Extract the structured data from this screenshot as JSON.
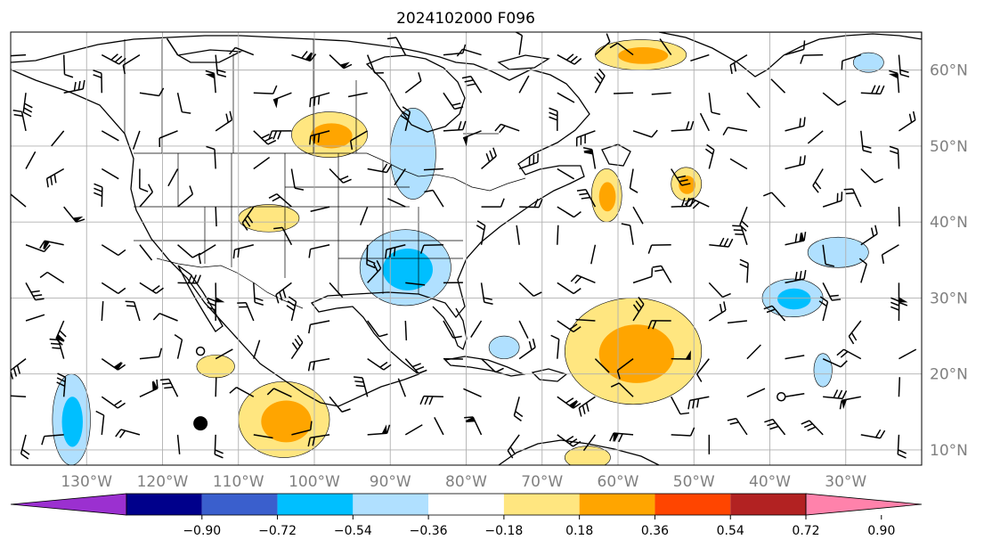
{
  "title": "2024102000 F096",
  "map": {
    "projection": "PlateCarree",
    "lon_range": [
      -140,
      -20
    ],
    "lat_range": [
      8,
      65
    ],
    "gridlines": true,
    "lon_ticks": [
      {
        "value": -130,
        "label": "130°W"
      },
      {
        "value": -120,
        "label": "120°W"
      },
      {
        "value": -110,
        "label": "110°W"
      },
      {
        "value": -100,
        "label": "100°W"
      },
      {
        "value": -90,
        "label": "90°W"
      },
      {
        "value": -80,
        "label": "80°W"
      },
      {
        "value": -70,
        "label": "70°W"
      },
      {
        "value": -60,
        "label": "60°W"
      },
      {
        "value": -50,
        "label": "50°W"
      },
      {
        "value": -40,
        "label": "40°W"
      },
      {
        "value": -30,
        "label": "30°W"
      }
    ],
    "lat_ticks": [
      {
        "value": 60,
        "label": "60°N"
      },
      {
        "value": 50,
        "label": "50°N"
      },
      {
        "value": 40,
        "label": "40°N"
      },
      {
        "value": 30,
        "label": "30°N"
      },
      {
        "value": 20,
        "label": "20°N"
      },
      {
        "value": 10,
        "label": "10°N"
      }
    ]
  },
  "colorbar": {
    "extend": "both",
    "bins": [
      {
        "color": "#9b30d0"
      },
      {
        "color": "#00008b"
      },
      {
        "color": "#3a5fcd"
      },
      {
        "color": "#00bfff"
      },
      {
        "color": "#b0e0ff"
      },
      {
        "color": "#ffffff"
      },
      {
        "color": "#ffe680"
      },
      {
        "color": "#ffa500"
      },
      {
        "color": "#ff4500"
      },
      {
        "color": "#b22222"
      },
      {
        "color": "#ff82ab"
      }
    ],
    "tick_labels": [
      "−0.90",
      "−0.72",
      "−0.54",
      "−0.36",
      "−0.18",
      "0.18",
      "0.36",
      "0.54",
      "0.72",
      "0.90"
    ]
  },
  "anomaly_regions": [
    {
      "name": "pos-hudson-bay",
      "sign": "positive",
      "level": 2,
      "center": [
        -98,
        51.5
      ],
      "radius": [
        5,
        3
      ]
    },
    {
      "name": "pos-great-plains",
      "sign": "positive",
      "level": 1,
      "center": [
        -106,
        40.5
      ],
      "radius": [
        4,
        1.8
      ]
    },
    {
      "name": "pos-baja",
      "sign": "positive",
      "level": 1,
      "center": [
        -113,
        21
      ],
      "radius": [
        2.5,
        1.5
      ]
    },
    {
      "name": "pos-mexico-west",
      "sign": "positive",
      "level": 2,
      "center": [
        -104,
        14
      ],
      "radius": [
        6,
        5
      ]
    },
    {
      "name": "pos-labrador-sea",
      "sign": "positive",
      "level": 2,
      "center": [
        -57,
        62
      ],
      "radius": [
        6,
        2
      ]
    },
    {
      "name": "pos-nova-scotia",
      "sign": "positive",
      "level": 2,
      "center": [
        -61.5,
        43.5
      ],
      "radius": [
        2,
        3.5
      ]
    },
    {
      "name": "pos-mid-atlantic-n",
      "sign": "positive",
      "level": 2,
      "center": [
        -51,
        45
      ],
      "radius": [
        2,
        2.2
      ]
    },
    {
      "name": "pos-atlantic-central",
      "sign": "positive",
      "level": 2,
      "center": [
        -58,
        23
      ],
      "radius": [
        9,
        7
      ]
    },
    {
      "name": "pos-caribbean-s",
      "sign": "positive",
      "level": 1,
      "center": [
        -64,
        9
      ],
      "radius": [
        3,
        1.5
      ]
    },
    {
      "name": "neg-great-lakes",
      "sign": "negative",
      "level": 1,
      "center": [
        -87,
        49
      ],
      "radius": [
        3,
        6
      ]
    },
    {
      "name": "neg-southeast",
      "sign": "negative",
      "level": 2,
      "center": [
        -88,
        34
      ],
      "radius": [
        6,
        5
      ]
    },
    {
      "name": "neg-bahamas",
      "sign": "negative",
      "level": 1,
      "center": [
        -75,
        23.5
      ],
      "radius": [
        2,
        1.5
      ]
    },
    {
      "name": "neg-atlantic-east",
      "sign": "negative",
      "level": 2,
      "center": [
        -37,
        30
      ],
      "radius": [
        4,
        2.5
      ]
    },
    {
      "name": "neg-atlantic-40n",
      "sign": "negative",
      "level": 1,
      "center": [
        -31,
        36
      ],
      "radius": [
        4,
        2
      ]
    },
    {
      "name": "neg-pacific",
      "sign": "negative",
      "level": 2,
      "center": [
        -132,
        14
      ],
      "radius": [
        2.5,
        6
      ]
    },
    {
      "name": "neg-azores-w",
      "sign": "negative",
      "level": 1,
      "center": [
        -33,
        20.5
      ],
      "radius": [
        1.2,
        2.2
      ]
    },
    {
      "name": "neg-greenland-se",
      "sign": "negative",
      "level": 1,
      "center": [
        -27,
        61
      ],
      "radius": [
        2,
        1.3
      ]
    }
  ],
  "markers": [
    {
      "name": "hurricane-marker",
      "lon": -115,
      "lat": 13.5,
      "type": "filled-circle"
    },
    {
      "name": "open-circle-west",
      "lon": -115,
      "lat": 23,
      "type": "open-circle"
    },
    {
      "name": "open-circle-east",
      "lon": -38.5,
      "lat": 17,
      "type": "open-circle"
    }
  ]
}
